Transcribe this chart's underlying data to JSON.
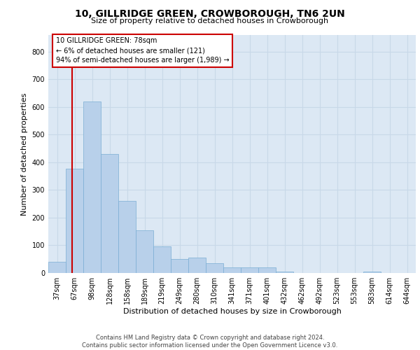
{
  "title": "10, GILLRIDGE GREEN, CROWBOROUGH, TN6 2UN",
  "subtitle": "Size of property relative to detached houses in Crowborough",
  "xlabel": "Distribution of detached houses by size in Crowborough",
  "ylabel": "Number of detached properties",
  "categories": [
    "37sqm",
    "67sqm",
    "98sqm",
    "128sqm",
    "158sqm",
    "189sqm",
    "219sqm",
    "249sqm",
    "280sqm",
    "310sqm",
    "341sqm",
    "371sqm",
    "401sqm",
    "432sqm",
    "462sqm",
    "492sqm",
    "523sqm",
    "553sqm",
    "583sqm",
    "614sqm",
    "644sqm"
  ],
  "values": [
    40,
    378,
    620,
    430,
    260,
    155,
    95,
    50,
    55,
    35,
    20,
    20,
    20,
    5,
    0,
    0,
    0,
    0,
    5,
    0,
    0
  ],
  "bar_color": "#b8d0ea",
  "bar_edge_color": "#7aaed4",
  "grid_color": "#c8d8e8",
  "background_color": "#dce8f4",
  "vline_color": "#cc0000",
  "ylim": [
    0,
    860
  ],
  "yticks": [
    0,
    100,
    200,
    300,
    400,
    500,
    600,
    700,
    800
  ],
  "annotation_text": "10 GILLRIDGE GREEN: 78sqm\n← 6% of detached houses are smaller (121)\n94% of semi-detached houses are larger (1,989) →",
  "footer_text": "Contains HM Land Registry data © Crown copyright and database right 2024.\nContains public sector information licensed under the Open Government Licence v3.0.",
  "title_fontsize": 10,
  "subtitle_fontsize": 8,
  "ylabel_fontsize": 8,
  "xlabel_fontsize": 8,
  "tick_fontsize": 7,
  "annotation_fontsize": 7,
  "footer_fontsize": 6
}
